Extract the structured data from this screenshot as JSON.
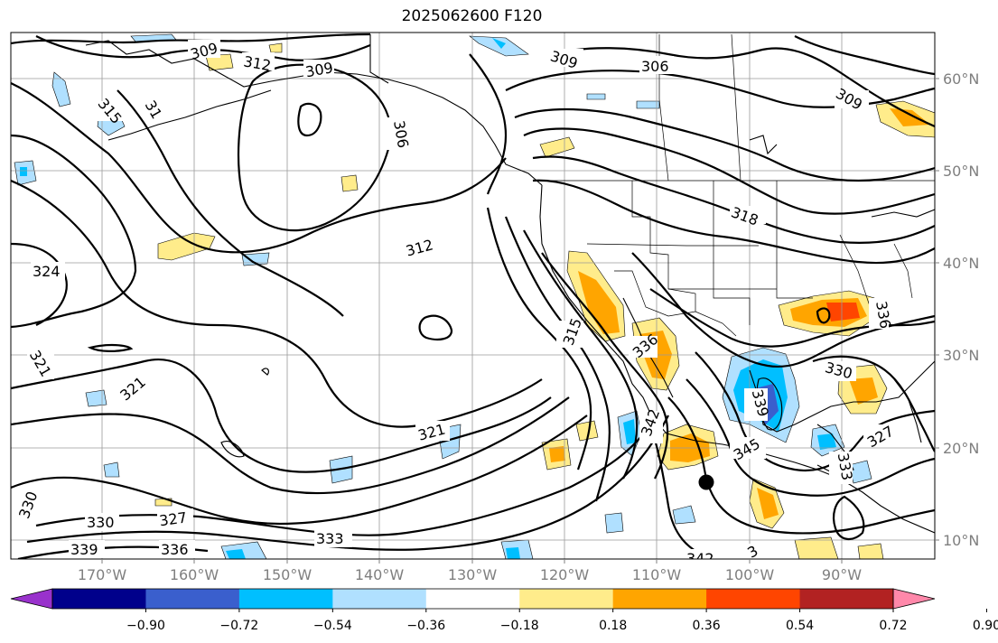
{
  "title": "2025062600 F120",
  "lat_labels": [
    "60°N",
    "50°N",
    "40°N",
    "30°N",
    "20°N",
    "10°N"
  ],
  "lon_labels": [
    "170°W",
    "160°W",
    "150°W",
    "140°W",
    "130°W",
    "120°W",
    "110°W",
    "100°W",
    "90°W"
  ],
  "contour_labels": [
    "309",
    "312",
    "309",
    "315",
    "31",
    "306",
    "309",
    "306",
    "309",
    "312",
    "324",
    "318",
    "321",
    "321",
    "315",
    "336",
    "336",
    "330",
    "321",
    "342",
    "339",
    "345",
    "327",
    "333",
    "330",
    "327",
    "330",
    "339",
    "336",
    "333",
    "342",
    "3"
  ],
  "colorbar": {
    "ticks": [
      "−0.90",
      "−0.72",
      "−0.54",
      "−0.36",
      "−0.18",
      "0.18",
      "0.36",
      "0.54",
      "0.72",
      "0.90"
    ],
    "colors": [
      "#9932cc",
      "#00008b",
      "#3a5fcd",
      "#00bfff",
      "#b0e0ff",
      "#ffffff",
      "#ffec8b",
      "#ffa500",
      "#ff4500",
      "#b22222",
      "#ff88aa"
    ]
  },
  "marker": "storm-center-dot"
}
